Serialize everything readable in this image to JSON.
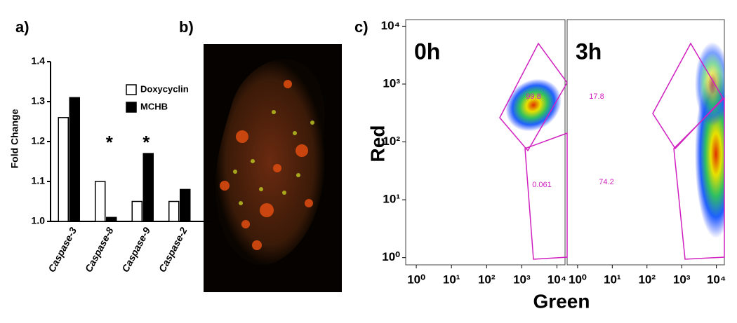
{
  "panel_labels": [
    "a)",
    "b)",
    "c)"
  ],
  "flow_axes": {
    "xlabel": "Green",
    "ylabel": "Red"
  },
  "chart_data": [
    {
      "type": "bar",
      "ylabel": "Fold Change",
      "categories": [
        "Caspase-3",
        "Caspase-8",
        "Caspase-9",
        "Caspase-2"
      ],
      "series": [
        {
          "name": "Doxycyclin",
          "color": "#ffffff",
          "values": [
            1.26,
            1.1,
            1.05,
            1.05
          ]
        },
        {
          "name": "MCHB",
          "color": "#000000",
          "values": [
            1.31,
            1.01,
            1.17,
            1.08
          ]
        }
      ],
      "ylim": [
        1.0,
        1.4
      ],
      "yticks": [
        {
          "value": 1.0,
          "label": "1.0"
        },
        1.1,
        1.2,
        1.3,
        1.4
      ],
      "annotations": [
        "*",
        "*"
      ]
    },
    {
      "type": "scatter",
      "title": "0h",
      "log_scale": true,
      "xlim": [
        0.5,
        17000
      ],
      "ylim": [
        0.75,
        13000
      ],
      "xticks": [
        {
          "value": 1,
          "label": "10⁰"
        },
        {
          "value": 10,
          "label": "10¹"
        },
        {
          "value": 100,
          "label": "10²"
        },
        {
          "value": 1000,
          "label": "10³"
        },
        {
          "value": 10000,
          "label": "10⁴"
        }
      ],
      "yticks": [
        {
          "value": 1,
          "label": "10⁰"
        },
        {
          "value": 10,
          "label": "10¹"
        },
        {
          "value": 100,
          "label": "10²"
        },
        {
          "value": 1000,
          "label": "10³"
        },
        {
          "value": 10000,
          "label": "10⁴"
        }
      ],
      "annotations": [
        "99.8",
        "0.061"
      ]
    },
    {
      "type": "scatter",
      "title": "3h",
      "log_scale": true,
      "xlim": [
        0.5,
        17000
      ],
      "xticks": [
        {
          "value": 1,
          "label": "10⁰"
        },
        {
          "value": 10,
          "label": "10¹"
        },
        {
          "value": 100,
          "label": "10²"
        },
        {
          "value": 1000,
          "label": "10³"
        },
        {
          "value": 10000,
          "label": "10⁴"
        }
      ],
      "annotations": [
        "17.8",
        "74.2"
      ]
    }
  ]
}
